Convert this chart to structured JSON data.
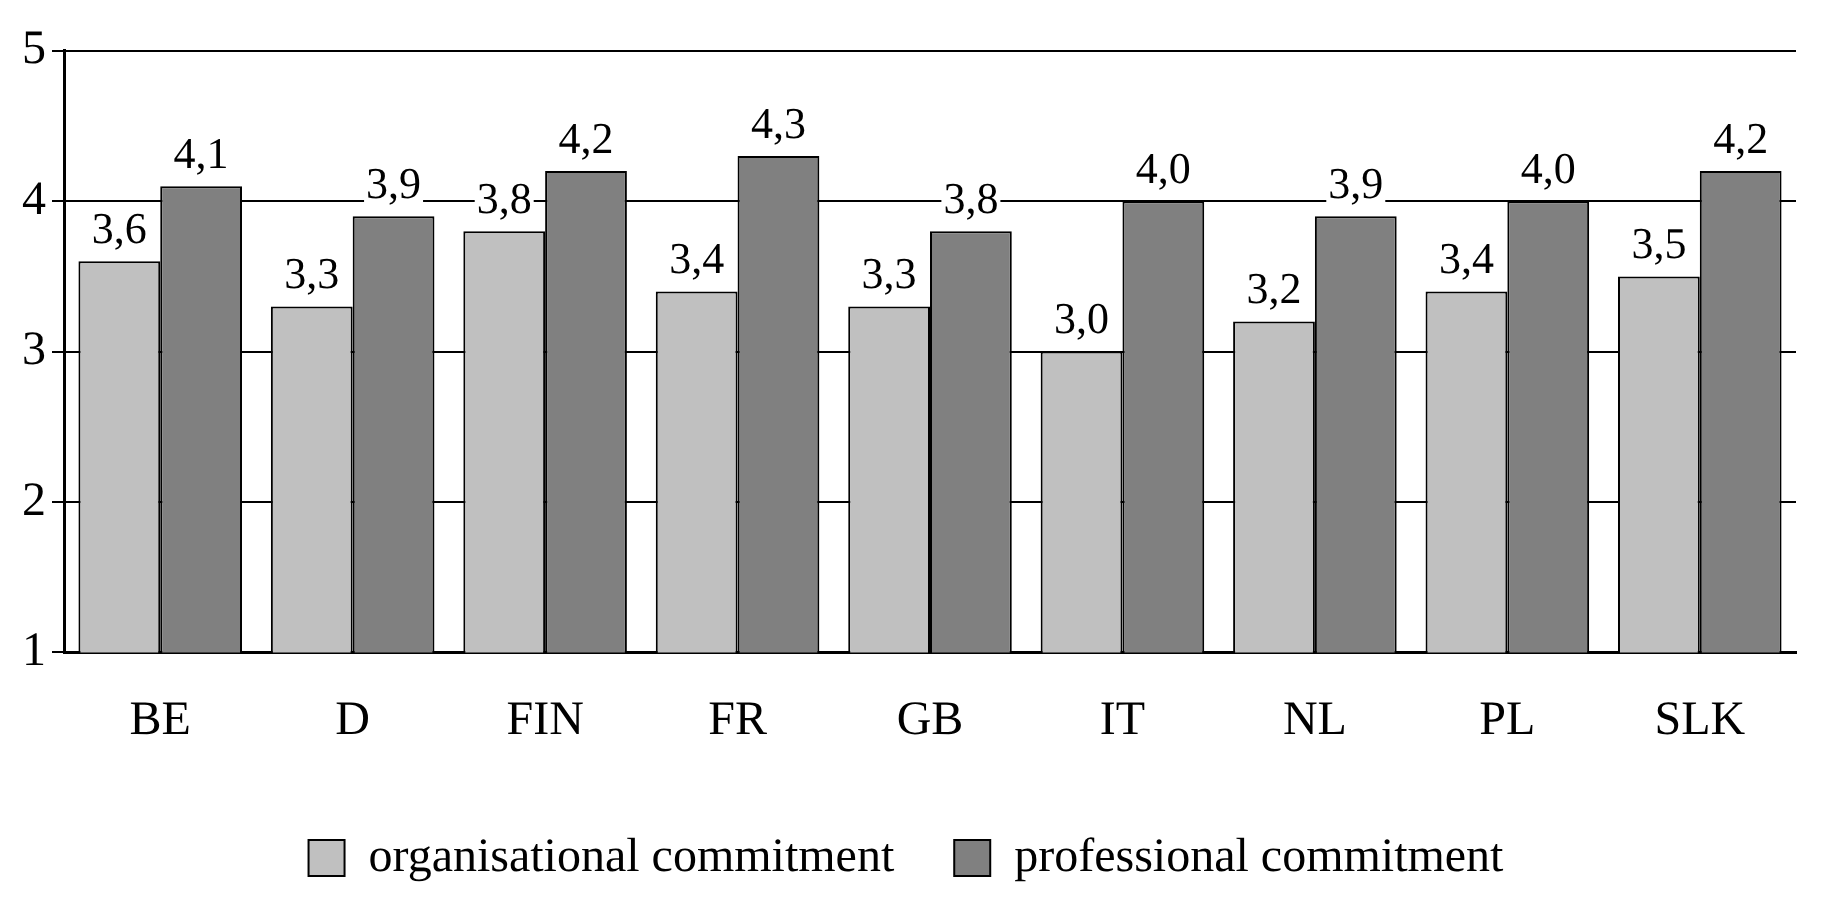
{
  "chart_data": {
    "type": "bar",
    "categories": [
      "BE",
      "D",
      "FIN",
      "FR",
      "GB",
      "IT",
      "NL",
      "PL",
      "SLK"
    ],
    "series": [
      {
        "name": "organisational commitment",
        "color": "#c0c0c0",
        "values": [
          3.6,
          3.3,
          3.8,
          3.4,
          3.3,
          3.0,
          3.2,
          3.4,
          3.5
        ],
        "value_labels": [
          "3,6",
          "3,3",
          "3,8",
          "3,4",
          "3,3",
          "3,0",
          "3,2",
          "3,4",
          "3,5"
        ]
      },
      {
        "name": "professional commitment",
        "color": "#808080",
        "values": [
          4.1,
          3.9,
          4.2,
          4.3,
          3.8,
          4.0,
          3.9,
          4.0,
          4.2
        ],
        "value_labels": [
          "4,1",
          "3,9",
          "4,2",
          "4,3",
          "3,8",
          "4,0",
          "3,9",
          "4,0",
          "4,2"
        ]
      }
    ],
    "ylim": [
      1,
      5
    ],
    "yticks": [
      1,
      2,
      3,
      4,
      5
    ],
    "grid": "y",
    "legend": "bottom"
  }
}
